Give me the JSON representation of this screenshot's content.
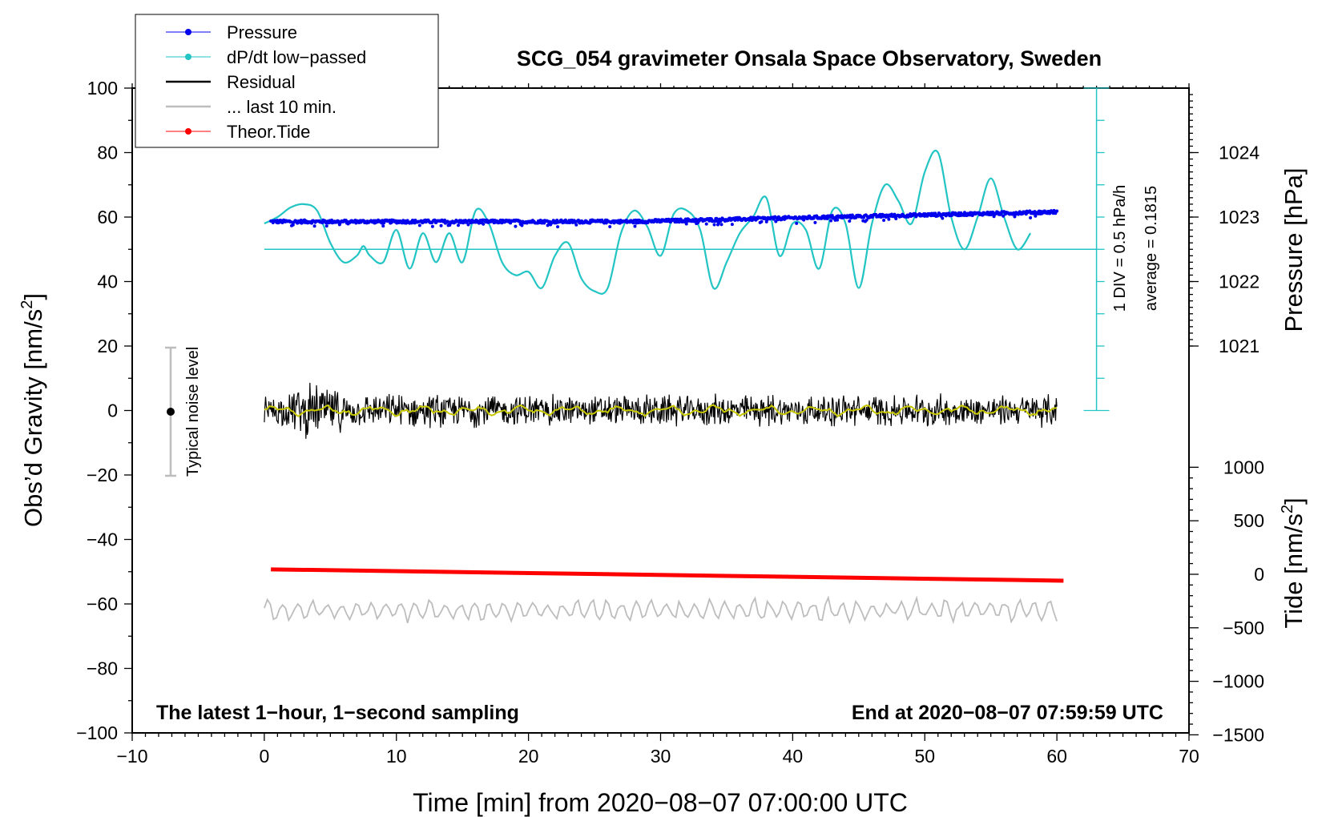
{
  "chart_data": {
    "type": "line",
    "title": "SCG_054 gravimeter Onsala Space Observatory, Sweden",
    "xlabel": "Time [min] from 2020−08−07 07:00:00 UTC",
    "ylabel_left": "Obs’d Gravity [nm/s",
    "ylabel_left_sup": "2",
    "ylabel_left_end": "]",
    "ylabel_right_pressure": "Pressure [hPa]",
    "ylabel_right_tide": "Tide [nm/s",
    "ylabel_right_tide_sup": "2",
    "ylabel_right_tide_end": "]",
    "xlim": [
      -10,
      70
    ],
    "ylim": [
      -100,
      100
    ],
    "x_ticks": [
      "−10",
      "0",
      "10",
      "20",
      "30",
      "40",
      "50",
      "60",
      "70"
    ],
    "y_ticks": [
      "100",
      "80",
      "60",
      "40",
      "20",
      "0",
      "−20",
      "−40",
      "−60",
      "−80",
      "−100"
    ],
    "pressure_ticks": [
      "1024",
      "1023",
      "1022",
      "1021"
    ],
    "tide_ticks": [
      "1000",
      "500",
      "0",
      "−500",
      "−1000",
      "−1500"
    ],
    "legend": [
      "Pressure",
      "dP/dt low−passed",
      "Residual",
      "... last 10 min.",
      "Theor.Tide"
    ],
    "annotations": {
      "noise": "Typical noise level",
      "div": "1 DIV = 0.5 hPa/h",
      "average": "average = 0.1815",
      "bottom_left": "The latest 1−hour, 1−second sampling",
      "bottom_right": "End at 2020−08−07 07:59:59 UTC"
    },
    "series": [
      {
        "name": "Pressure",
        "unit": "hPa",
        "color": "#0000ee",
        "start": 1022.93,
        "end": 1023.08,
        "x_range": [
          0.5,
          60
        ]
      },
      {
        "name": "dP/dt low−passed",
        "unit": "gravity-axis",
        "color": "#22c4c4",
        "x": [
          0,
          1,
          2,
          3,
          4,
          5,
          6,
          7,
          7.5,
          8,
          9,
          10,
          11,
          12,
          13,
          14,
          15,
          16,
          17,
          18,
          19,
          20,
          21,
          22,
          23,
          24,
          25,
          26,
          27,
          28,
          29,
          30,
          31,
          32,
          33,
          34,
          35,
          36,
          37,
          38,
          39,
          40,
          41,
          42,
          43,
          44,
          45,
          46,
          47,
          48,
          49,
          50,
          51,
          52,
          53,
          54,
          55,
          56,
          57,
          58
        ],
        "y": [
          58,
          60,
          63,
          64,
          62,
          52,
          46,
          48,
          51,
          48,
          46,
          56,
          44,
          55,
          46,
          55,
          46,
          62,
          58,
          46,
          42,
          43,
          38,
          48,
          52,
          41,
          37,
          38,
          55,
          62,
          57,
          48,
          61,
          62,
          56,
          38,
          46,
          55,
          60,
          66,
          48,
          58,
          56,
          44,
          62,
          58,
          38,
          58,
          70,
          65,
          58,
          74,
          80,
          60,
          50,
          60,
          72,
          60,
          50,
          55
        ]
      },
      {
        "name": "Residual",
        "unit": "nm/s2",
        "color": "#000000",
        "x_range": [
          0,
          60
        ],
        "center": 0,
        "amplitude": 4
      },
      {
        "name": "... last 10 min.",
        "unit": "nm/s2",
        "color": "#bdbdbd",
        "x_range": [
          0,
          60
        ],
        "center": -62,
        "amplitude": 3
      },
      {
        "name": "Theor.Tide",
        "unit": "nm/s2",
        "color": "#ff0000",
        "x": [
          0.5,
          60.5
        ],
        "y": [
          46,
          -60
        ]
      }
    ]
  },
  "colors": {
    "pressure": "#0000ee",
    "dpdt": "#22c4c4",
    "residual": "#000000",
    "last10": "#bdbdbd",
    "tide": "#ff0000",
    "smooth": "#c8c800"
  }
}
